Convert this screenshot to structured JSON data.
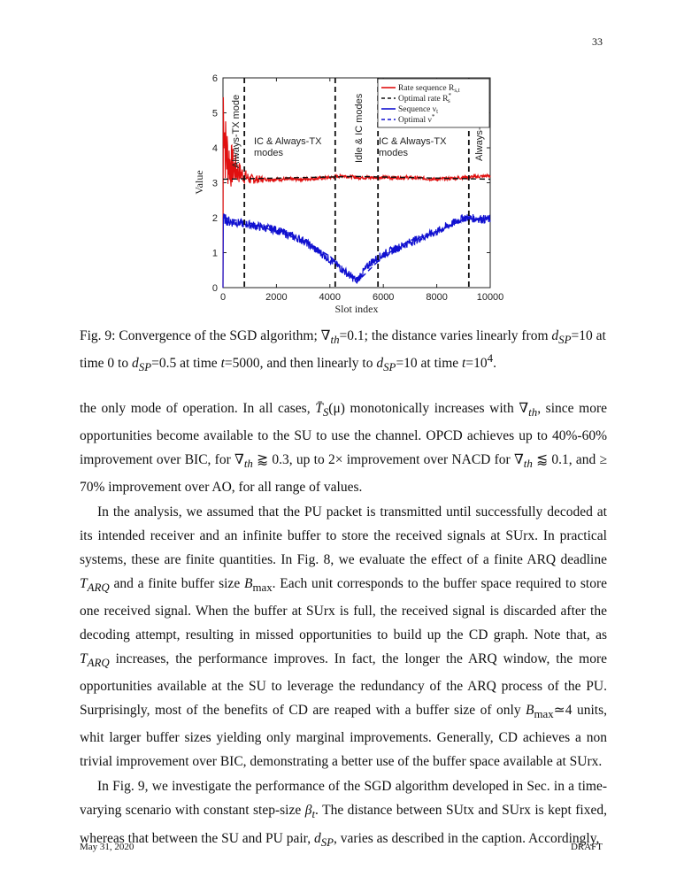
{
  "page_number": "33",
  "chart_data": {
    "type": "line",
    "xlabel": "Slot index",
    "ylabel": "Value",
    "xlim": [
      0,
      10000
    ],
    "ylim": [
      0,
      6
    ],
    "xticks": [
      "0",
      "2000",
      "4000",
      "6000",
      "8000",
      "10000"
    ],
    "yticks": [
      "0",
      "1",
      "2",
      "3",
      "4",
      "5",
      "6"
    ],
    "grid": false,
    "legend_placement": "top-right",
    "series": [
      {
        "name": "Rate sequence R_{s,t}",
        "color": "#e01010",
        "style": "solid",
        "x": [
          0,
          100,
          300,
          600,
          1000,
          2000,
          3000,
          4000,
          4500,
          5000,
          6000,
          7000,
          8000,
          9000,
          10000
        ],
        "y": [
          5.5,
          3.9,
          3.5,
          3.3,
          3.1,
          3.1,
          3.1,
          3.15,
          3.2,
          3.15,
          3.15,
          3.15,
          3.1,
          3.15,
          3.2
        ]
      },
      {
        "name": "Optimal rate R_s^*",
        "color": "#111111",
        "style": "dashed",
        "x": [
          0,
          5000,
          10000
        ],
        "y": [
          3.1,
          3.18,
          3.1
        ]
      },
      {
        "name": "Sequence ν_t",
        "color": "#1010d0",
        "style": "solid",
        "x": [
          0,
          200,
          1000,
          2000,
          3000,
          4000,
          4500,
          5000,
          5500,
          6000,
          7000,
          8000,
          9000,
          10000
        ],
        "y": [
          2.0,
          1.9,
          1.8,
          1.65,
          1.35,
          0.8,
          0.5,
          0.2,
          0.7,
          0.95,
          1.3,
          1.6,
          2.0,
          1.95
        ]
      },
      {
        "name": "Optimal ν^*",
        "color": "#1010d0",
        "style": "dashed",
        "x": [
          0,
          1000,
          2000,
          3000,
          4000,
          5000,
          6000,
          7000,
          8000,
          9000,
          10000
        ],
        "y": [
          2.0,
          1.85,
          1.6,
          1.35,
          0.9,
          0.15,
          0.9,
          1.35,
          1.6,
          1.95,
          2.0
        ]
      }
    ],
    "vlines": [
      800,
      4200,
      5800,
      9200
    ],
    "annotations": {
      "always_tx_left": "Always-TX mode",
      "ic_always_tx_left": [
        "IC & Always-TX",
        "modes"
      ],
      "idle_ic": "Idle & IC modes",
      "ic_always_tx_right": [
        "IC & Always-TX",
        "modes"
      ],
      "always_tx_right": "Always-TX mode"
    }
  },
  "legend": [
    {
      "label": "Rate sequence R",
      "sub": "s,t",
      "color": "#e01010",
      "dashed": false
    },
    {
      "label": "Optimal rate R",
      "sub": "s",
      "sup": "*",
      "color": "#111111",
      "dashed": true
    },
    {
      "label": "Sequence ν",
      "sub": "t",
      "color": "#1010d0",
      "dashed": false
    },
    {
      "label": "Optimal ν",
      "sup": "*",
      "color": "#1010d0",
      "dashed": true
    }
  ],
  "caption": {
    "label": "Fig. 9:",
    "text_1": "Convergence of the SGD algorithm; ∇",
    "sub_th": "th",
    "text_2": "=0.1; the distance varies linearly from ",
    "d_sp": "d",
    "sub_sp": "SP",
    "text_3": "=10 at time 0 to ",
    "text_4": "=0.5 at time ",
    "t": "t",
    "text_5": "=5000, and then linearly to ",
    "text_6": "=10 at time ",
    "text_7": "=10",
    "sup_4": "4",
    "text_8": "."
  },
  "paragraphs": {
    "p1": [
      "the only mode of operation. In all cases, ",
      "T̄",
      "S",
      "(μ) monotonically increases with ∇",
      "th",
      ", since more opportunities become available to the SU to use the channel. OPCD achieves up to 40%-60% improvement over BIC, for ∇",
      "th",
      " ⪆ 0.3, up to 2× improvement over NACD for ∇",
      "th",
      " ⪅ 0.1, and ≥ 70% improvement over AO, for all range of values."
    ],
    "p2": [
      "In the analysis, we assumed that the PU packet is transmitted until successfully decoded at its intended receiver and an infinite buffer to store the received signals at SUrx. In practical systems, these are finite quantities. In Fig. 8, we evaluate the effect of a finite ARQ deadline ",
      "T",
      "ARQ",
      " and a finite buffer size ",
      "B",
      "max",
      ". Each unit corresponds to the buffer space required to store one received signal. When the buffer at SUrx is full, the received signal is discarded after the decoding attempt, resulting in missed opportunities to build up the CD graph. Note that, as ",
      "T",
      "ARQ",
      " increases, the performance improves. In fact, the longer the ARQ window, the more opportunities available at the SU to leverage the redundancy of the ARQ process of the PU. Surprisingly, most of the benefits of CD are reaped with a buffer size of only ",
      "B",
      "max",
      "≃4 units, whit larger buffer sizes yielding only marginal improvements. Generally, CD achieves a non trivial improvement over BIC, demonstrating a better use of the buffer space available at SUrx."
    ],
    "p3": [
      "In Fig. 9, we investigate the performance of the SGD algorithm developed in Sec.  in a time-varying scenario with constant step-size ",
      "β",
      "t",
      ". The distance between SUtx and SUrx is kept fixed, whereas that between the SU and PU pair, ",
      "d",
      "SP",
      ", varies as described in the caption. Accordingly,"
    ]
  },
  "footer": {
    "date": "May 31, 2020",
    "draft": "DRAFT"
  }
}
